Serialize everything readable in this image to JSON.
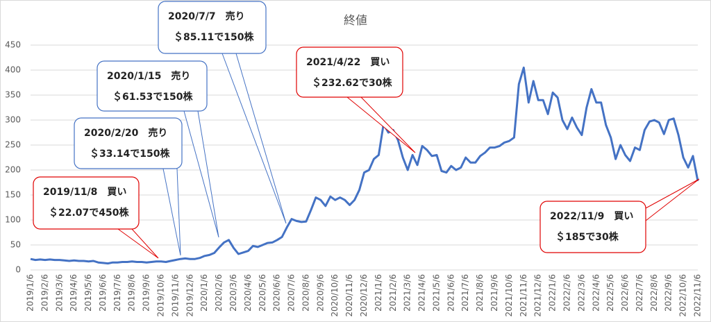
{
  "chart_data": {
    "type": "line",
    "title": "終値",
    "categories": [
      "2019/1/6",
      null,
      null,
      "2019/2/6",
      null,
      null,
      "2019/3/6",
      null,
      null,
      "2019/4/6",
      null,
      null,
      "2019/5/6",
      null,
      null,
      "2019/6/6",
      null,
      null,
      "2019/7/6",
      null,
      null,
      "2019/8/6",
      null,
      null,
      "2019/9/6",
      null,
      null,
      "2019/10/6",
      null,
      null,
      "2019/11/6",
      null,
      null,
      "2019/12/6",
      null,
      null,
      "2020/1/6",
      null,
      null,
      "2020/2/6",
      null,
      null,
      "2020/3/6",
      null,
      null,
      "2020/4/6",
      null,
      null,
      "2020/5/6",
      null,
      null,
      "2020/6/6",
      null,
      null,
      "2020/7/6",
      null,
      null,
      "2020/8/6",
      null,
      null,
      "2020/9/6",
      null,
      null,
      "2020/10/6",
      null,
      null,
      "2020/11/6",
      null,
      null,
      "2020/12/6",
      null,
      null,
      "2021/1/6",
      null,
      null,
      "2021/2/6",
      null,
      null,
      "2021/3/6",
      null,
      null,
      "2021/4/6",
      null,
      null,
      "2021/5/6",
      null,
      null,
      "2021/6/6",
      null,
      null,
      "2021/7/6",
      null,
      null,
      "2021/8/6",
      null,
      null,
      "2021/9/6",
      null,
      null,
      "2021/10/6",
      null,
      null,
      "2021/11/6",
      null,
      null,
      "2021/12/6",
      null,
      null,
      "2022/1/6",
      null,
      null,
      "2022/2/6",
      null,
      null,
      "2022/3/6",
      null,
      null,
      "2022/4/6",
      null,
      null,
      "2022/5/6",
      null,
      null,
      "2022/6/6",
      null,
      null,
      "2022/7/6",
      null,
      null,
      "2022/8/6",
      null,
      null,
      "2022/9/6",
      null,
      null,
      "2022/10/6",
      null,
      null,
      "2022/11/6"
    ],
    "values": [
      22,
      20,
      21,
      20,
      21,
      20,
      20,
      19,
      18,
      19,
      18,
      18,
      17,
      18,
      15,
      14,
      13,
      15,
      15,
      16,
      16,
      17,
      16,
      16,
      15,
      16,
      17,
      17,
      16,
      18,
      20,
      22,
      23,
      22,
      22,
      24,
      28,
      30,
      34,
      45,
      55,
      60,
      44,
      32,
      35,
      38,
      48,
      46,
      50,
      54,
      55,
      60,
      66,
      85,
      102,
      98,
      96,
      97,
      120,
      145,
      140,
      128,
      147,
      140,
      145,
      140,
      130,
      140,
      160,
      195,
      200,
      222,
      230,
      292,
      275,
      280,
      260,
      225,
      200,
      230,
      210,
      248,
      240,
      228,
      230,
      198,
      195,
      208,
      200,
      205,
      225,
      215,
      215,
      228,
      235,
      245,
      245,
      248,
      255,
      258,
      265,
      372,
      405,
      335,
      378,
      340,
      340,
      312,
      355,
      345,
      300,
      282,
      305,
      285,
      270,
      325,
      362,
      335,
      335,
      290,
      265,
      222,
      250,
      230,
      218,
      245,
      240,
      280,
      297,
      300,
      295,
      272,
      300,
      303,
      270,
      225,
      205,
      228,
      178
    ],
    "color": "#4472c4",
    "ylim": [
      0,
      450
    ],
    "yticks": [
      0,
      50,
      100,
      150,
      200,
      250,
      300,
      350,
      400,
      450
    ],
    "grid": true,
    "annotations": [
      {
        "lines": [
          "2019/11/8　買い",
          "＄22.07で450株"
        ],
        "color": "#e00000"
      },
      {
        "lines": [
          "2020/2/20　売り",
          "＄33.14で150株"
        ],
        "color": "#4472c4"
      },
      {
        "lines": [
          "2020/1/15　売り",
          "＄61.53で150株"
        ],
        "color": "#4472c4"
      },
      {
        "lines": [
          "2020/7/7　売り",
          "＄85.11で150株"
        ],
        "color": "#4472c4"
      },
      {
        "lines": [
          "2021/4/22　買い",
          "＄232.62で30株"
        ],
        "color": "#e00000"
      },
      {
        "lines": [
          "2022/11/9　買い",
          "＄185で30株"
        ],
        "color": "#e00000"
      }
    ]
  }
}
